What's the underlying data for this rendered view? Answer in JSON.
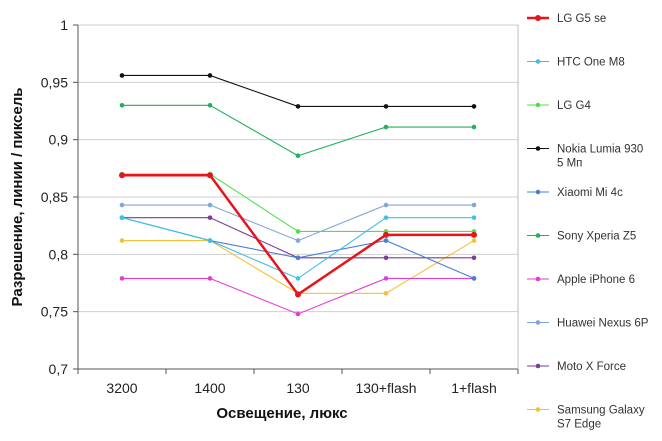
{
  "chart_data": {
    "type": "line",
    "categories": [
      "3200",
      "1400",
      "130",
      "130+flash",
      "1+flash"
    ],
    "xlabel": "Освещение,  люкс",
    "ylabel": "Разрешение,  линии  / пиксель",
    "ylim": [
      0.7,
      1
    ],
    "yticks": [
      0.7,
      0.75,
      0.8,
      0.85,
      0.9,
      0.95,
      1
    ],
    "ytick_labels": [
      "0,7",
      "0,75",
      "0,8",
      "0,85",
      "0,9",
      "0,95",
      "1"
    ],
    "grid": "horizontal",
    "legend_position": "right",
    "series": [
      {
        "name": "LG G5 se",
        "color": "#e8141b",
        "values": [
          0.869,
          0.869,
          0.765,
          0.817,
          0.817
        ]
      },
      {
        "name": "HTC One M8",
        "color": "#3ec1e6",
        "values": [
          0.832,
          0.812,
          0.779,
          0.832,
          0.832
        ]
      },
      {
        "name": "LG G4",
        "color": "#4fe04a",
        "values": [
          0.87,
          0.87,
          0.82,
          0.82,
          0.82
        ]
      },
      {
        "name": "Nokia Lumia 930 5 Мп",
        "color": "#111111",
        "values": [
          0.956,
          0.956,
          0.929,
          0.929,
          0.929
        ]
      },
      {
        "name": "Xiaomi Mi 4c",
        "color": "#4a7ed6",
        "values": [
          0.832,
          0.812,
          0.797,
          0.812,
          0.779
        ]
      },
      {
        "name": "Sony Xperia Z5",
        "color": "#22b05a",
        "values": [
          0.93,
          0.93,
          0.886,
          0.911,
          0.911
        ]
      },
      {
        "name": "Apple iPhone 6",
        "color": "#e53bd2",
        "values": [
          0.779,
          0.779,
          0.748,
          0.779,
          0.779
        ]
      },
      {
        "name": "Huawei Nexus 6P",
        "color": "#7fa6d6",
        "values": [
          0.843,
          0.843,
          0.812,
          0.843,
          0.843
        ]
      },
      {
        "name": "Moto X Force",
        "color": "#7a3d97",
        "values": [
          0.832,
          0.832,
          0.797,
          0.797,
          0.797
        ]
      },
      {
        "name": "Samsung Galaxy S7 Edge",
        "color": "#f5c037",
        "values": [
          0.812,
          0.812,
          0.766,
          0.766,
          0.812
        ]
      }
    ]
  }
}
